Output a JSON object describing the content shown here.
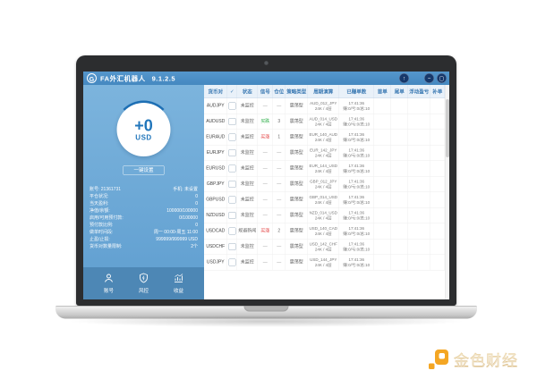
{
  "window": {
    "title": "FA外汇机器人",
    "version": "9.1.2.5",
    "logo_glyph": "G",
    "controls": {
      "upload": "↑",
      "minimize": "−",
      "maximize": "▢"
    }
  },
  "sidebar": {
    "gauge": {
      "value": "+0",
      "unit": "USD"
    },
    "setup_button": "一键设置",
    "stats": [
      {
        "label": "账号: 21361731",
        "value": "手机: 未设置"
      },
      {
        "label": "平仓状况:",
        "value": "0"
      },
      {
        "label": "当天盈利:",
        "value": "0"
      },
      {
        "label": "净值/余额:",
        "value": "100000/100000"
      },
      {
        "label": "启用/可用预付款:",
        "value": "0/100000"
      },
      {
        "label": "预付款比例:",
        "value": "0"
      },
      {
        "label": "做单时间段:",
        "value": "周一 00:00-周五 11:00"
      },
      {
        "label": "止盈/止损:",
        "value": "999999/999999 USD"
      },
      {
        "label": "货币对数量限制:",
        "value": "2个"
      }
    ],
    "footer_buttons": [
      {
        "icon": "user-icon",
        "label": "账号"
      },
      {
        "icon": "shield-icon",
        "label": "风控"
      },
      {
        "icon": "chart-icon",
        "label": "收益"
      }
    ]
  },
  "table": {
    "headers": [
      "货币对",
      "✓",
      "状态",
      "信号",
      "仓位",
      "策略类型",
      "周期演算",
      "已赚单数",
      "首单",
      "尾单",
      "浮动盈亏",
      "补单"
    ],
    "rows": [
      {
        "pair": "AUDJPY",
        "checked": false,
        "status": "未监控",
        "signal": "—",
        "signal_color": "none",
        "position": "—",
        "strategy": "震荡型",
        "cycle": [
          "AUD_012_JPY",
          "24K / 4层"
        ],
        "orders": [
          "17:41:36",
          "赚:0/亏:0/总:10"
        ],
        "first": "",
        "last": "",
        "floating": "",
        "extra": ""
      },
      {
        "pair": "AUDUSD",
        "checked": false,
        "status": "未监控",
        "signal": "买跌",
        "signal_color": "green",
        "position": "3",
        "strategy": "震荡型",
        "cycle": [
          "AUD_014_USD",
          "24K / 4层"
        ],
        "orders": [
          "17:41:36",
          "赚:0/亏:0/总:10"
        ],
        "first": "",
        "last": "",
        "floating": "",
        "extra": ""
      },
      {
        "pair": "EURAUD",
        "checked": false,
        "status": "未监控",
        "signal": "买涨",
        "signal_color": "red",
        "position": "1",
        "strategy": "震荡型",
        "cycle": [
          "EUR_140_AUD",
          "24K / 4层"
        ],
        "orders": [
          "17:41:36",
          "赚:0/亏:0/总:10"
        ],
        "first": "",
        "last": "",
        "floating": "",
        "extra": ""
      },
      {
        "pair": "EURJPY",
        "checked": false,
        "status": "未监控",
        "signal": "—",
        "signal_color": "none",
        "position": "—",
        "strategy": "震荡型",
        "cycle": [
          "EUR_142_JPY",
          "24K / 4层"
        ],
        "orders": [
          "17:41:36",
          "赚:0/亏:0/总:10"
        ],
        "first": "",
        "last": "",
        "floating": "",
        "extra": ""
      },
      {
        "pair": "EURUSD",
        "checked": false,
        "status": "未监控",
        "signal": "—",
        "signal_color": "none",
        "position": "—",
        "strategy": "震荡型",
        "cycle": [
          "EUR_144_USD",
          "24K / 4层"
        ],
        "orders": [
          "17:41:36",
          "赚:0/亏:0/总:10"
        ],
        "first": "",
        "last": "",
        "floating": "",
        "extra": ""
      },
      {
        "pair": "GBPJPY",
        "checked": false,
        "status": "未监控",
        "signal": "—",
        "signal_color": "none",
        "position": "—",
        "strategy": "震荡型",
        "cycle": [
          "GBP_012_JPY",
          "24K / 4层"
        ],
        "orders": [
          "17:41:36",
          "赚:0/亏:0/总:10"
        ],
        "first": "",
        "last": "",
        "floating": "",
        "extra": ""
      },
      {
        "pair": "GBPUSD",
        "checked": false,
        "status": "未监控",
        "signal": "—",
        "signal_color": "none",
        "position": "—",
        "strategy": "震荡型",
        "cycle": [
          "GBP_014_USD",
          "24K / 4层"
        ],
        "orders": [
          "17:41:36",
          "赚:0/亏:0/总:10"
        ],
        "first": "",
        "last": "",
        "floating": "",
        "extra": ""
      },
      {
        "pair": "NZDUSD",
        "checked": false,
        "status": "未监控",
        "signal": "—",
        "signal_color": "none",
        "position": "—",
        "strategy": "震荡型",
        "cycle": [
          "NZD_014_USD",
          "24K / 4层"
        ],
        "orders": [
          "17:41:36",
          "赚:0/亏:0/总:10"
        ],
        "first": "",
        "last": "",
        "floating": "",
        "extra": ""
      },
      {
        "pair": "USDCAD",
        "checked": false,
        "status": "规避新闻",
        "signal": "买涨",
        "signal_color": "red",
        "position": "2",
        "strategy": "震荡型",
        "cycle": [
          "USD_140_CAD",
          "24K / 4层"
        ],
        "orders": [
          "17:41:36",
          "赚:0/亏:0/总:10"
        ],
        "first": "",
        "last": "",
        "floating": "",
        "extra": ""
      },
      {
        "pair": "USDCHF",
        "checked": false,
        "status": "未监控",
        "signal": "—",
        "signal_color": "none",
        "position": "—",
        "strategy": "震荡型",
        "cycle": [
          "USD_142_CHF",
          "24K / 4层"
        ],
        "orders": [
          "17:41:36",
          "赚:0/亏:0/总:10"
        ],
        "first": "",
        "last": "",
        "floating": "",
        "extra": ""
      },
      {
        "pair": "USDJPY",
        "checked": false,
        "status": "未监控",
        "signal": "—",
        "signal_color": "none",
        "position": "—",
        "strategy": "震荡型",
        "cycle": [
          "USD_144_JPY",
          "24K / 4层"
        ],
        "orders": [
          "17:41:36",
          "赚:0/亏:0/总:10"
        ],
        "first": "",
        "last": "",
        "floating": "",
        "extra": ""
      }
    ]
  },
  "watermark": {
    "text": "金色财经"
  },
  "colors": {
    "titlebar": "#4a8cc4",
    "sidebar": "#6aa9d6",
    "footer_strip": "#4d87b5",
    "header_text": "#3a79b3",
    "signal_green": "#2fae4a",
    "signal_red": "#e23b3b",
    "watermark_gold": "#cda35a",
    "logo_orange": "#f4a623"
  }
}
